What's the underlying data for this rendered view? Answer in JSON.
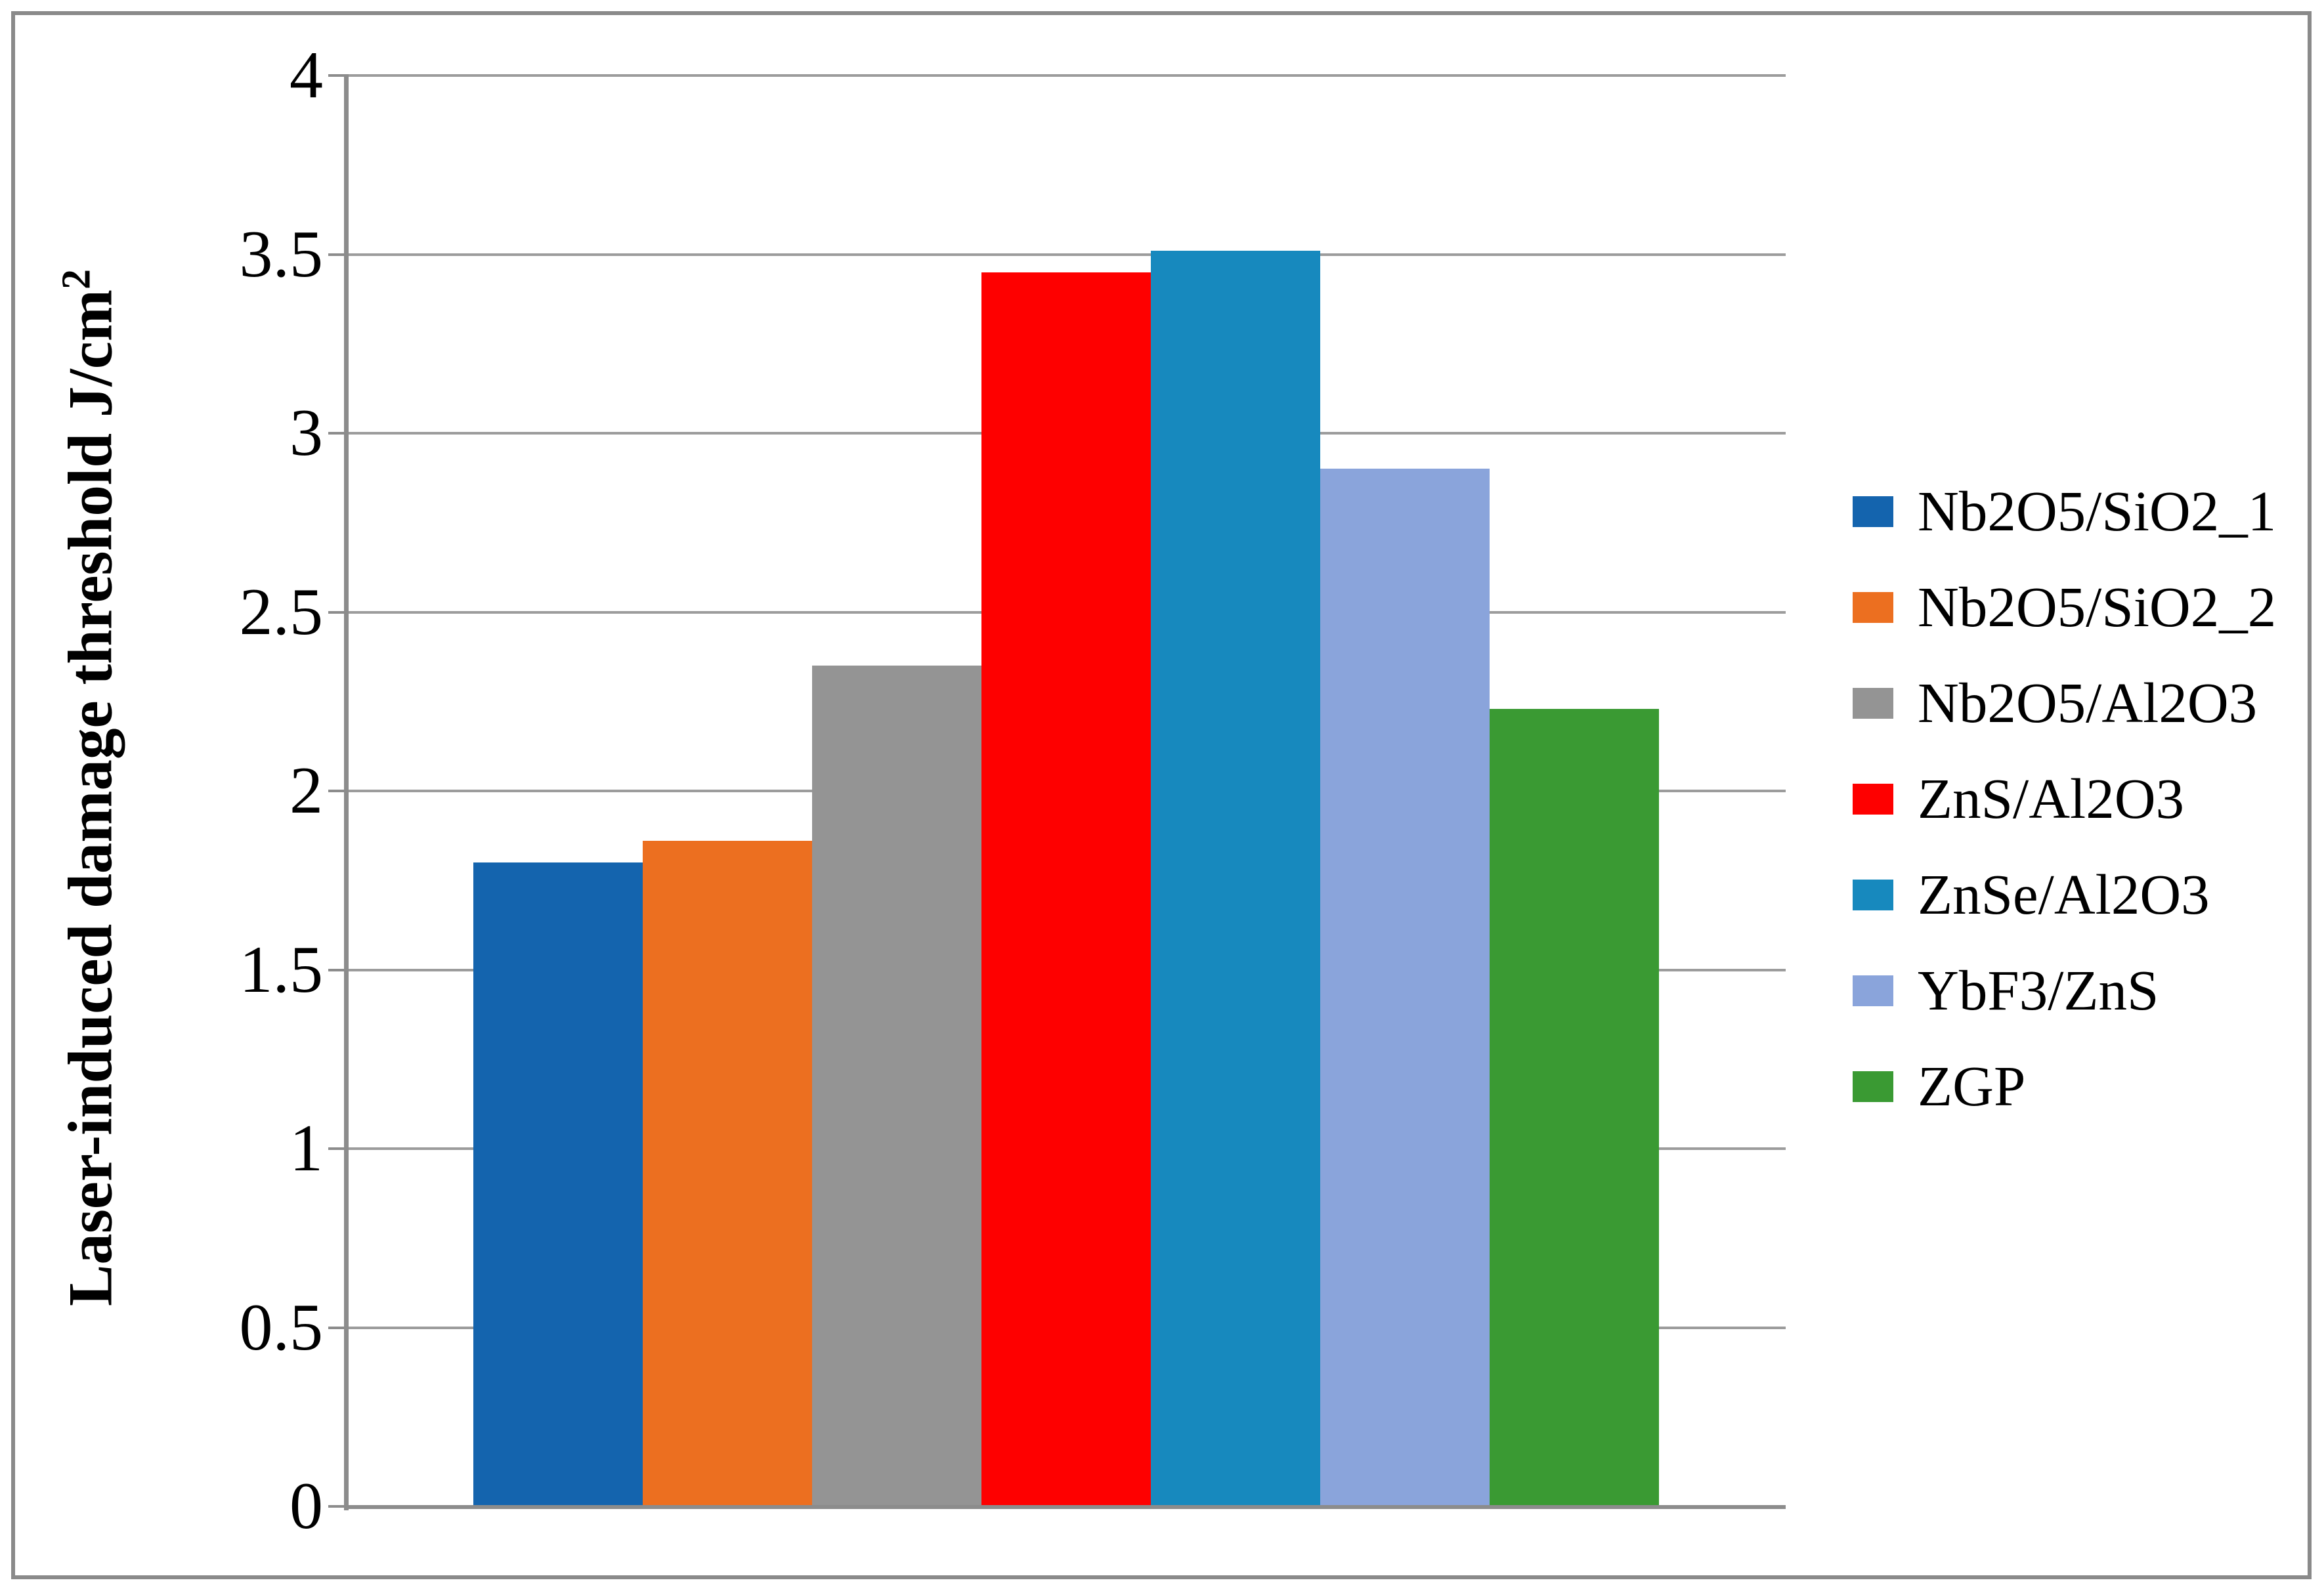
{
  "chart_data": {
    "type": "bar",
    "categories": [
      "Nb2O5/SiO2_1",
      "Nb2O5/SiO2_2",
      "Nb2O5/Al2O3",
      "ZnS/Al2O3",
      "ZnSe/Al2O3",
      "YbF3/ZnS",
      "ZGP"
    ],
    "values": [
      1.8,
      1.86,
      2.35,
      3.45,
      3.51,
      2.9,
      2.23
    ],
    "colors": [
      "#1464AE",
      "#EC6F20",
      "#949494",
      "#FE0000",
      "#1789BE",
      "#8AA4DB",
      "#3A9A33"
    ],
    "title": "",
    "xlabel": "",
    "ylabel": "Laser-induced damage threshold J/cm²",
    "ylabel_base": "Laser-induced damage threshold J/cm",
    "ylabel_superscript": "2",
    "ylim": [
      0,
      4
    ],
    "ytick_step": 0.5,
    "ytick_labels": [
      "0",
      "0.5",
      "1",
      "1.5",
      "2",
      "2.5",
      "3",
      "3.5",
      "4"
    ],
    "grid": true,
    "legend_position": "right"
  },
  "style_colors": {
    "gridline": "#9C9C9C",
    "axis": "#8C8C8C",
    "frame_border": "#8A8A8A",
    "background": "#FFFFFF",
    "text": "#000000"
  }
}
